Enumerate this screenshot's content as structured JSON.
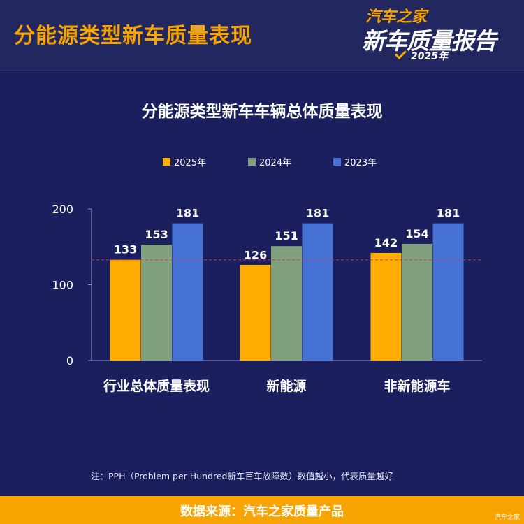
{
  "header": {
    "title": "分能源类型新车质量表现",
    "logo": {
      "brand": "汽车之家",
      "report": "新车质量报告",
      "year": "2025年"
    }
  },
  "colors": {
    "background": "#1b1f5e",
    "accent": "#f7a400",
    "series_2025": "#ffad00",
    "series_2024": "#80a07e",
    "series_2023": "#4672d6",
    "reference_line": "#c8384a"
  },
  "chart_data": {
    "type": "bar",
    "title": "分能源类型新车车辆总体质量表现",
    "categories": [
      "行业总体质量表现",
      "新能源",
      "非新能源车"
    ],
    "series": [
      {
        "name": "2025年",
        "values": [
          133,
          126,
          142
        ],
        "color": "#ffad00"
      },
      {
        "name": "2024年",
        "values": [
          153,
          151,
          154
        ],
        "color": "#80a07e"
      },
      {
        "name": "2023年",
        "values": [
          181,
          181,
          181
        ],
        "color": "#4672d6"
      }
    ],
    "yticks": [
      0,
      100,
      200
    ],
    "ylim": [
      0,
      200
    ],
    "reference_line": {
      "value": 133,
      "style": "dashed"
    },
    "legend": "top",
    "grid": false,
    "xlabel": "",
    "ylabel": ""
  },
  "note": "注：PPH（Problem per Hundred新车百车故障数）数值越小，代表质量越好",
  "footer": "数据来源：汽车之家质量产品",
  "watermark": "汽车之家"
}
